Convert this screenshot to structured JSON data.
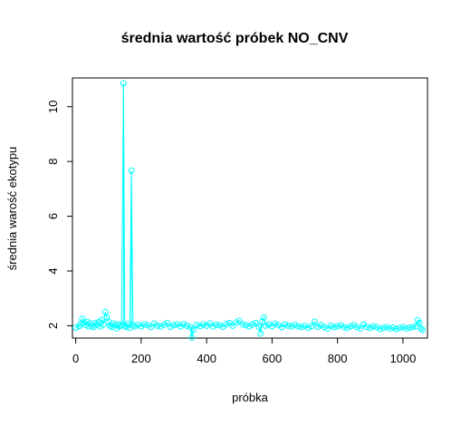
{
  "chart_data": {
    "type": "scatter",
    "title": "średnia wartość próbek NO_CNV",
    "xlabel": "próbka",
    "ylabel": "średnia warość ekotypu",
    "xlim": [
      -10,
      1075
    ],
    "ylim": [
      1.55,
      11.05
    ],
    "x_ticks": [
      0,
      200,
      400,
      600,
      800,
      1000
    ],
    "y_ticks": [
      2,
      4,
      6,
      8,
      10
    ],
    "grid": false,
    "legend": "none",
    "series_color": "#00FFFF",
    "series": [
      {
        "points": [
          [
            0,
            1.93
          ],
          [
            10,
            1.98
          ],
          [
            15,
            2.06
          ],
          [
            20,
            2.25
          ],
          [
            25,
            2.12
          ],
          [
            30,
            2.02
          ],
          [
            35,
            2.15
          ],
          [
            40,
            1.98
          ],
          [
            45,
            2.08
          ],
          [
            50,
            2.0
          ],
          [
            55,
            1.95
          ],
          [
            60,
            2.1
          ],
          [
            65,
            2.04
          ],
          [
            70,
            2.13
          ],
          [
            75,
            1.97
          ],
          [
            80,
            2.22
          ],
          [
            85,
            2.05
          ],
          [
            90,
            2.5
          ],
          [
            95,
            2.3
          ],
          [
            100,
            2.15
          ],
          [
            105,
            2.0
          ],
          [
            110,
            1.96
          ],
          [
            115,
            2.08
          ],
          [
            120,
            2.02
          ],
          [
            125,
            1.9
          ],
          [
            130,
            2.05
          ],
          [
            135,
            1.98
          ],
          [
            140,
            2.03
          ],
          [
            146,
            10.85
          ],
          [
            150,
            2.0
          ],
          [
            155,
            1.95
          ],
          [
            160,
            2.06
          ],
          [
            165,
            1.92
          ],
          [
            170,
            7.67
          ],
          [
            175,
            2.02
          ],
          [
            180,
            1.97
          ],
          [
            190,
            2.03
          ],
          [
            200,
            1.98
          ],
          [
            210,
            2.05
          ],
          [
            220,
            2.02
          ],
          [
            230,
            1.95
          ],
          [
            240,
            2.08
          ],
          [
            250,
            2.0
          ],
          [
            260,
            1.97
          ],
          [
            270,
            2.04
          ],
          [
            280,
            2.1
          ],
          [
            290,
            1.96
          ],
          [
            300,
            2.02
          ],
          [
            310,
            2.05
          ],
          [
            320,
            1.98
          ],
          [
            330,
            2.06
          ],
          [
            340,
            2.0
          ],
          [
            350,
            1.95
          ],
          [
            355,
            1.57
          ],
          [
            360,
            1.85
          ],
          [
            370,
            2.03
          ],
          [
            380,
            1.98
          ],
          [
            390,
            2.05
          ],
          [
            400,
            2.0
          ],
          [
            410,
            2.08
          ],
          [
            420,
            1.97
          ],
          [
            430,
            2.04
          ],
          [
            440,
            2.02
          ],
          [
            450,
            1.96
          ],
          [
            460,
            2.06
          ],
          [
            470,
            2.1
          ],
          [
            480,
            2.0
          ],
          [
            490,
            2.12
          ],
          [
            500,
            2.18
          ],
          [
            510,
            2.05
          ],
          [
            520,
            2.02
          ],
          [
            530,
            1.98
          ],
          [
            540,
            2.05
          ],
          [
            550,
            2.1
          ],
          [
            560,
            1.95
          ],
          [
            565,
            1.72
          ],
          [
            570,
            2.15
          ],
          [
            575,
            2.3
          ],
          [
            580,
            2.0
          ],
          [
            590,
            2.05
          ],
          [
            600,
            1.98
          ],
          [
            610,
            2.08
          ],
          [
            620,
            2.02
          ],
          [
            630,
            1.95
          ],
          [
            640,
            2.05
          ],
          [
            650,
            2.0
          ],
          [
            660,
            1.97
          ],
          [
            670,
            2.03
          ],
          [
            680,
            1.98
          ],
          [
            690,
            1.95
          ],
          [
            700,
            2.0
          ],
          [
            710,
            1.92
          ],
          [
            720,
            1.98
          ],
          [
            730,
            2.15
          ],
          [
            740,
            1.96
          ],
          [
            750,
            2.02
          ],
          [
            760,
            1.95
          ],
          [
            770,
            1.9
          ],
          [
            780,
            2.0
          ],
          [
            790,
            1.95
          ],
          [
            800,
            1.98
          ],
          [
            810,
            2.02
          ],
          [
            820,
            1.95
          ],
          [
            830,
            1.92
          ],
          [
            840,
            1.98
          ],
          [
            850,
            2.02
          ],
          [
            860,
            1.95
          ],
          [
            870,
            1.9
          ],
          [
            880,
            2.05
          ],
          [
            890,
            1.96
          ],
          [
            900,
            1.92
          ],
          [
            910,
            1.98
          ],
          [
            920,
            1.95
          ],
          [
            930,
            1.88
          ],
          [
            940,
            1.92
          ],
          [
            950,
            1.95
          ],
          [
            960,
            1.9
          ],
          [
            970,
            1.93
          ],
          [
            980,
            1.88
          ],
          [
            990,
            1.92
          ],
          [
            1000,
            1.95
          ],
          [
            1010,
            1.9
          ],
          [
            1020,
            1.93
          ],
          [
            1030,
            1.95
          ],
          [
            1040,
            1.98
          ],
          [
            1045,
            2.2
          ],
          [
            1050,
            2.1
          ],
          [
            1055,
            1.9
          ],
          [
            1060,
            1.85
          ]
        ]
      }
    ]
  }
}
